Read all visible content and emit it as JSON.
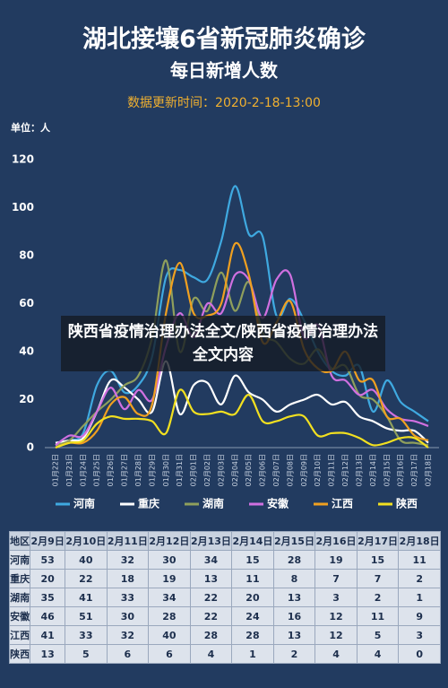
{
  "chart_data": {
    "type": "line",
    "title": "湖北接壤6省新冠肺炎确诊",
    "subtitle": "每日新增人数",
    "update_time": "数据更新时间：2020-2-18-13:00",
    "unit": "单位：人",
    "categories": [
      "01月22日",
      "01月23日",
      "01月24日",
      "01月25日",
      "01月26日",
      "01月27日",
      "01月28日",
      "01月29日",
      "01月30日",
      "01月31日",
      "02月01日",
      "02月02日",
      "02月03日",
      "02月04日",
      "02月05日",
      "02月06日",
      "02月07日",
      "02月08日",
      "02月09日",
      "02月10日",
      "02月11日",
      "02月12日",
      "02月13日",
      "02月14日",
      "02月15日",
      "02月16日",
      "02月17日",
      "02月18日"
    ],
    "series": [
      {
        "name": "河南",
        "color": "#3fa9e0",
        "values": [
          1,
          3,
          6,
          26,
          32,
          23,
          26,
          38,
          71,
          74,
          71,
          70,
          86,
          109,
          89,
          88,
          55,
          62,
          53,
          40,
          32,
          30,
          34,
          15,
          28,
          19,
          15,
          11
        ]
      },
      {
        "name": "重庆",
        "color": "#ffffff",
        "values": [
          2,
          3,
          4,
          15,
          28,
          25,
          20,
          15,
          36,
          14,
          26,
          27,
          18,
          30,
          23,
          20,
          15,
          18,
          20,
          22,
          18,
          19,
          13,
          11,
          8,
          7,
          7,
          2
        ]
      },
      {
        "name": "湖南",
        "color": "#8f9f5c",
        "values": [
          1,
          3,
          9,
          15,
          20,
          26,
          30,
          46,
          78,
          40,
          62,
          57,
          73,
          57,
          69,
          48,
          44,
          37,
          35,
          41,
          33,
          34,
          22,
          20,
          13,
          3,
          2,
          1
        ]
      },
      {
        "name": "安徽",
        "color": "#d070e0",
        "values": [
          1,
          5,
          5,
          15,
          25,
          16,
          24,
          20,
          42,
          56,
          46,
          60,
          56,
          72,
          70,
          54,
          70,
          72,
          46,
          51,
          30,
          28,
          22,
          24,
          16,
          12,
          11,
          9
        ]
      },
      {
        "name": "江西",
        "color": "#f0a020",
        "values": [
          0,
          2,
          2,
          7,
          18,
          21,
          14,
          18,
          56,
          77,
          56,
          55,
          60,
          85,
          72,
          44,
          52,
          61,
          41,
          33,
          32,
          40,
          28,
          28,
          13,
          12,
          5,
          3
        ]
      },
      {
        "name": "陕西",
        "color": "#f2e020",
        "values": [
          0,
          2,
          3,
          10,
          13,
          12,
          12,
          11,
          6,
          24,
          15,
          14,
          15,
          14,
          22,
          11,
          11,
          13,
          13,
          5,
          6,
          6,
          4,
          1,
          2,
          4,
          4,
          0
        ]
      }
    ],
    "ylim": [
      0,
      120
    ],
    "yticks": [
      0,
      20,
      40,
      60,
      80,
      100,
      120
    ],
    "grid": false
  },
  "table": {
    "header": [
      "地区",
      "2月9日",
      "2月10日",
      "2月11日",
      "2月12日",
      "2月13日",
      "2月14日",
      "2月15日",
      "2月16日",
      "2月17日",
      "2月18日"
    ],
    "rows": [
      [
        "河南",
        53,
        40,
        32,
        30,
        34,
        15,
        28,
        19,
        15,
        11
      ],
      [
        "重庆",
        20,
        22,
        18,
        19,
        13,
        11,
        8,
        7,
        7,
        2
      ],
      [
        "湖南",
        35,
        41,
        33,
        34,
        22,
        20,
        13,
        3,
        2,
        1
      ],
      [
        "安徽",
        46,
        51,
        30,
        28,
        22,
        24,
        16,
        12,
        11,
        9
      ],
      [
        "江西",
        41,
        33,
        32,
        40,
        28,
        28,
        13,
        12,
        5,
        3
      ],
      [
        "陕西",
        13,
        5,
        6,
        6,
        4,
        1,
        2,
        4,
        4,
        0
      ]
    ]
  },
  "overlay": {
    "text": "陕西省疫情治理办法全文/陕西省疫情治理办法全文内容"
  }
}
